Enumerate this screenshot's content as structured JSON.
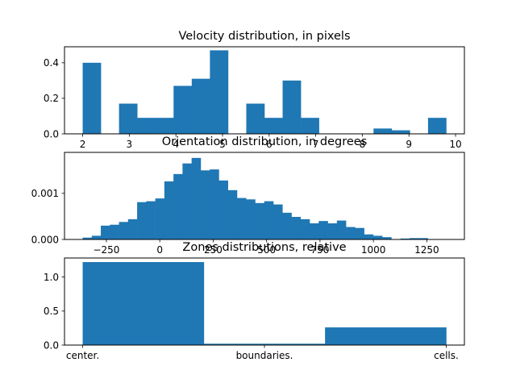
{
  "chart_data": [
    {
      "type": "bar",
      "title": "Velocity distribution, in pixels",
      "color": "#1f77b4",
      "xlim": [
        1.61,
        10.19
      ],
      "ylim": [
        0,
        0.49
      ],
      "xticks": [
        "2",
        "3",
        "4",
        "5",
        "6",
        "7",
        "8",
        "9",
        "10"
      ],
      "yticks": [
        "0.0",
        "0.2",
        "0.4"
      ],
      "bins": [
        {
          "x0": 2.0,
          "x1": 2.39,
          "value": 0.4
        },
        {
          "x0": 2.78,
          "x1": 3.17,
          "value": 0.17
        },
        {
          "x0": 3.17,
          "x1": 3.56,
          "value": 0.09
        },
        {
          "x0": 3.56,
          "x1": 3.95,
          "value": 0.09
        },
        {
          "x0": 3.95,
          "x1": 4.34,
          "value": 0.27
        },
        {
          "x0": 4.34,
          "x1": 4.73,
          "value": 0.31
        },
        {
          "x0": 4.73,
          "x1": 5.12,
          "value": 0.47
        },
        {
          "x0": 5.51,
          "x1": 5.9,
          "value": 0.17
        },
        {
          "x0": 5.9,
          "x1": 6.29,
          "value": 0.09
        },
        {
          "x0": 6.29,
          "x1": 6.68,
          "value": 0.3
        },
        {
          "x0": 6.68,
          "x1": 7.07,
          "value": 0.09
        },
        {
          "x0": 8.24,
          "x1": 8.63,
          "value": 0.03
        },
        {
          "x0": 8.63,
          "x1": 9.02,
          "value": 0.02
        },
        {
          "x0": 9.41,
          "x1": 9.8,
          "value": 0.09
        }
      ]
    },
    {
      "type": "bar",
      "title": "Orientation distribution, in degrees",
      "color": "#1f77b4",
      "xlim": [
        -446,
        1426
      ],
      "ylim": [
        0,
        0.00189
      ],
      "xticks": [
        "−250",
        "0",
        "250",
        "500",
        "750",
        "1000",
        "1250"
      ],
      "xtick_values": [
        -250,
        0,
        250,
        500,
        750,
        1000,
        1250
      ],
      "yticks": [
        "0.000",
        "0.001"
      ],
      "ytick_values": [
        0,
        0.001
      ],
      "bin_start": -361,
      "bin_width": 42.5,
      "values": [
        4e-05,
        8e-05,
        0.0003,
        0.00032,
        0.00038,
        0.00044,
        0.00081,
        0.00083,
        0.00089,
        0.00126,
        0.00142,
        0.00165,
        0.00177,
        0.0015,
        0.00152,
        0.00128,
        0.00107,
        0.0009,
        0.00087,
        0.00079,
        0.00083,
        0.00076,
        0.00058,
        0.00049,
        0.00044,
        0.00035,
        0.0004,
        0.00035,
        0.00041,
        0.00027,
        0.00025,
        0.00011,
        8e-05,
        5e-05,
        0.0,
        2e-05,
        3e-05,
        3e-05
      ]
    },
    {
      "type": "bar",
      "title": "Zones distributions, relative",
      "color": "#1f77b4",
      "xlim": [
        -0.1,
        2.1
      ],
      "ylim": [
        0,
        1.28
      ],
      "xticks": [
        "center.",
        "boundaries.",
        "cells."
      ],
      "xtick_values": [
        0,
        1,
        2
      ],
      "yticks": [
        "0.0",
        "0.5",
        "1.0"
      ],
      "ytick_values": [
        0,
        0.5,
        1.0
      ],
      "bins": [
        {
          "x0": 0.0,
          "x1": 0.6667,
          "value": 1.22
        },
        {
          "x0": 0.6667,
          "x1": 1.3333,
          "value": 0.02
        },
        {
          "x0": 1.3333,
          "x1": 2.0,
          "value": 0.26
        }
      ]
    }
  ]
}
